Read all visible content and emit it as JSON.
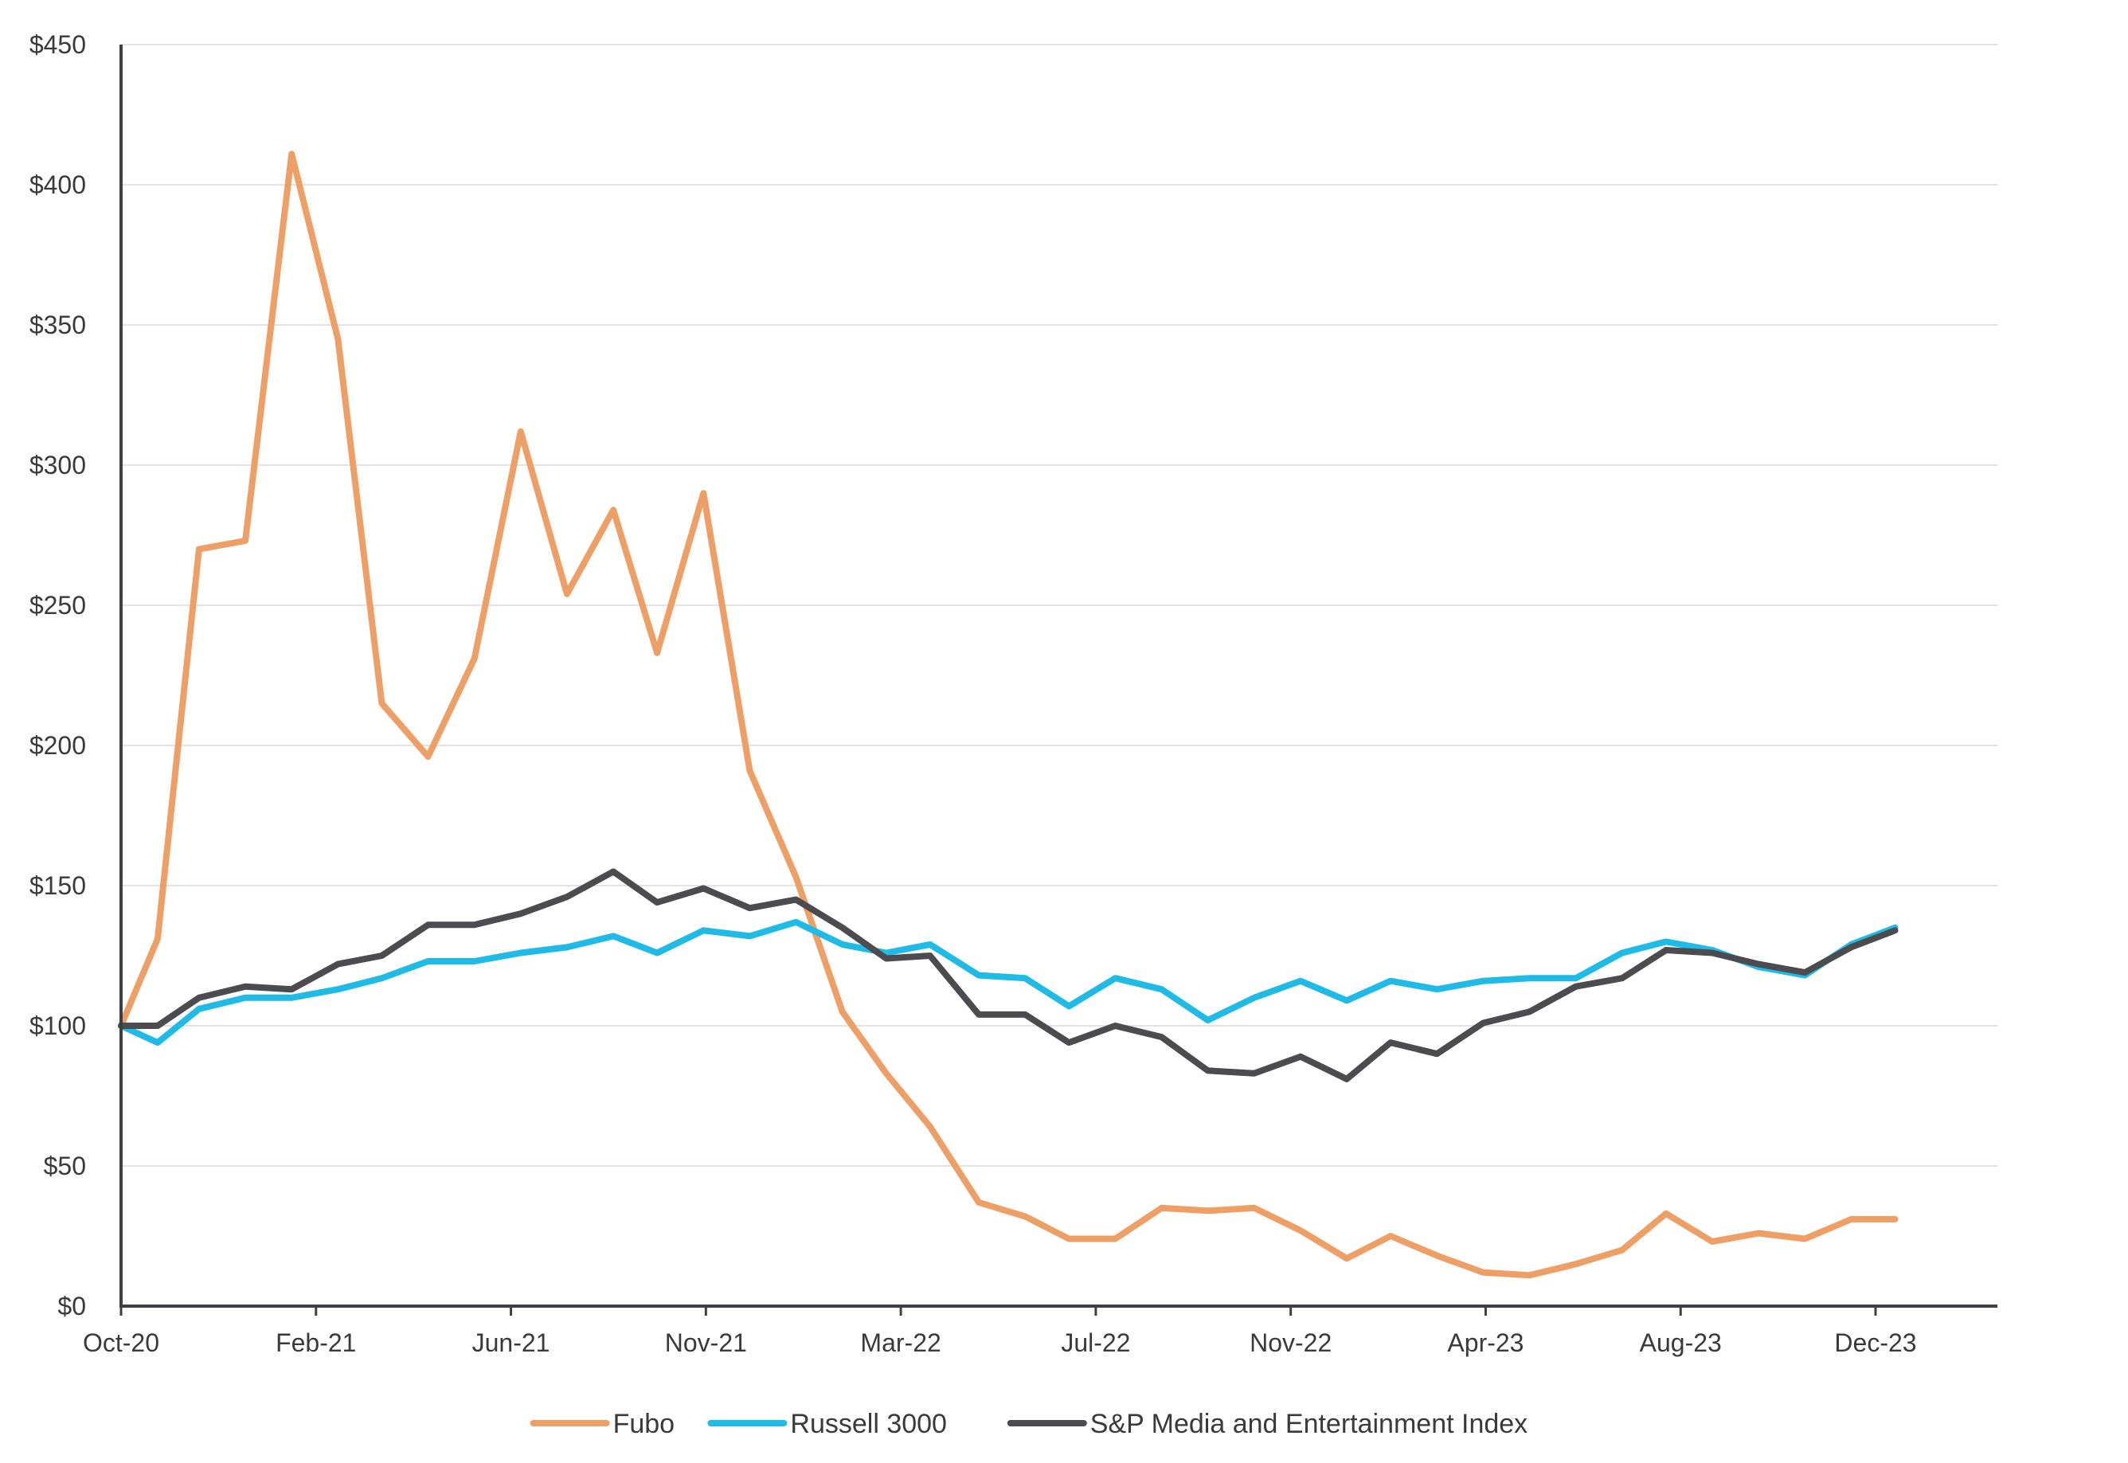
{
  "chart_data": {
    "type": "line",
    "title": "",
    "xlabel": "",
    "ylabel": "",
    "ylim": [
      0,
      450
    ],
    "y_ticks": [
      "$0",
      "$50",
      "$100",
      "$150",
      "$200",
      "$250",
      "$300",
      "$350",
      "$400",
      "$450"
    ],
    "y_tick_values": [
      0,
      50,
      100,
      150,
      200,
      250,
      300,
      350,
      400,
      450
    ],
    "x_range": [
      0,
      38.5
    ],
    "x_ticks": [
      {
        "label": "Oct-20",
        "index": 0
      },
      {
        "label": "Feb-21",
        "index": 4
      },
      {
        "label": "Jun-21",
        "index": 8
      },
      {
        "label": "Nov-21",
        "index": 12
      },
      {
        "label": "Mar-22",
        "index": 16
      },
      {
        "label": "Jul-22",
        "index": 20
      },
      {
        "label": "Nov-22",
        "index": 24
      },
      {
        "label": "Apr-23",
        "index": 28
      },
      {
        "label": "Aug-23",
        "index": 32
      },
      {
        "label": "Dec-23",
        "index": 36
      }
    ],
    "grid": true,
    "legend_position": "bottom",
    "series": [
      {
        "name": "Fubo",
        "color": "#ED9F66",
        "x": [
          0,
          0.75,
          1.6,
          2.55,
          3.5,
          4.45,
          5.35,
          6.3,
          7.25,
          8.2,
          9.15,
          10.1,
          11.0,
          11.95,
          12.9,
          13.85,
          14.8,
          15.7,
          16.6,
          17.6,
          18.55,
          19.45,
          20.4,
          21.35,
          22.3,
          23.25,
          24.2,
          25.15,
          26.05,
          27.0,
          27.95,
          28.9,
          29.85,
          30.8,
          31.7,
          32.65,
          33.6,
          34.55,
          35.5,
          36.4
        ],
        "values": [
          100,
          131,
          270,
          273,
          411,
          345,
          215,
          196,
          231,
          312,
          254,
          284,
          233,
          290,
          191,
          153,
          105,
          83,
          64,
          37,
          32,
          24,
          24,
          35,
          34,
          35,
          27,
          17,
          25,
          18,
          12,
          11,
          15,
          20,
          33,
          23,
          26,
          24,
          31,
          31
        ]
      },
      {
        "name": "Russell 3000",
        "color": "#1FBBE6",
        "x": [
          0,
          0.75,
          1.6,
          2.55,
          3.5,
          4.45,
          5.35,
          6.3,
          7.25,
          8.2,
          9.15,
          10.1,
          11.0,
          11.95,
          12.9,
          13.85,
          14.8,
          15.7,
          16.6,
          17.6,
          18.55,
          19.45,
          20.4,
          21.35,
          22.3,
          23.25,
          24.2,
          25.15,
          26.05,
          27.0,
          27.95,
          28.9,
          29.85,
          30.8,
          31.7,
          32.65,
          33.6,
          34.55,
          35.5,
          36.4
        ],
        "values": [
          100,
          94,
          106,
          110,
          110,
          113,
          117,
          123,
          123,
          126,
          128,
          132,
          126,
          134,
          132,
          137,
          129,
          126,
          129,
          118,
          117,
          107,
          117,
          113,
          102,
          110,
          116,
          109,
          116,
          113,
          116,
          117,
          117,
          126,
          130,
          127,
          121,
          118,
          129,
          135
        ]
      },
      {
        "name": "S&P Media and Entertainment Index",
        "color": "#4B4B50",
        "x": [
          0,
          0.75,
          1.6,
          2.55,
          3.5,
          4.45,
          5.35,
          6.3,
          7.25,
          8.2,
          9.15,
          10.1,
          11.0,
          11.95,
          12.9,
          13.85,
          14.8,
          15.7,
          16.6,
          17.6,
          18.55,
          19.45,
          20.4,
          21.35,
          22.3,
          23.25,
          24.2,
          25.15,
          26.05,
          27.0,
          27.95,
          28.9,
          29.85,
          30.8,
          31.7,
          32.65,
          33.6,
          34.55,
          35.5,
          36.4
        ],
        "values": [
          100,
          100,
          110,
          114,
          113,
          122,
          125,
          136,
          136,
          140,
          146,
          155,
          144,
          149,
          142,
          145,
          135,
          124,
          125,
          104,
          104,
          94,
          100,
          96,
          84,
          83,
          89,
          81,
          94,
          90,
          101,
          105,
          114,
          117,
          127,
          126,
          122,
          119,
          128,
          134
        ]
      }
    ]
  }
}
